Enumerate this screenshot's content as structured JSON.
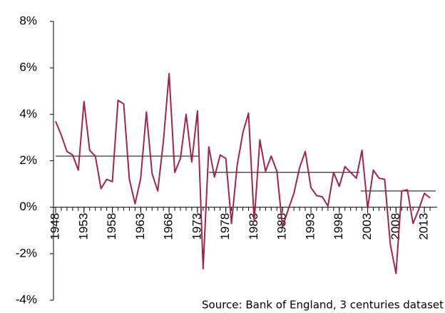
{
  "chart_data": {
    "type": "line",
    "x": [
      1948,
      1949,
      1950,
      1951,
      1952,
      1953,
      1954,
      1955,
      1956,
      1957,
      1958,
      1959,
      1960,
      1961,
      1962,
      1963,
      1964,
      1965,
      1966,
      1967,
      1968,
      1969,
      1970,
      1971,
      1972,
      1973,
      1974,
      1975,
      1976,
      1977,
      1978,
      1979,
      1980,
      1981,
      1982,
      1983,
      1984,
      1985,
      1986,
      1987,
      1988,
      1989,
      1990,
      1991,
      1992,
      1993,
      1994,
      1995,
      1996,
      1997,
      1998,
      1999,
      2000,
      2001,
      2002,
      2003,
      2004,
      2005,
      2006,
      2007,
      2008,
      2009,
      2010,
      2011,
      2012,
      2013,
      2014
    ],
    "series": [
      {
        "color": "#a3244a",
        "values": [
          3.7,
          3.1,
          2.4,
          2.25,
          1.6,
          4.55,
          2.45,
          2.2,
          0.8,
          1.2,
          1.1,
          4.6,
          4.45,
          1.2,
          0.15,
          1.25,
          4.1,
          1.45,
          0.7,
          2.85,
          5.75,
          1.5,
          2.1,
          4.0,
          1.95,
          4.15,
          -2.65,
          2.6,
          1.3,
          2.25,
          2.1,
          -0.7,
          1.8,
          3.2,
          4.05,
          -0.6,
          2.9,
          1.55,
          2.2,
          1.55,
          -0.85,
          -0.1,
          0.6,
          1.7,
          2.4,
          0.85,
          0.5,
          0.45,
          0.05,
          1.5,
          0.9,
          1.75,
          1.5,
          1.25,
          2.45,
          -0.05,
          1.6,
          1.25,
          1.2,
          -1.6,
          -2.85,
          0.7,
          0.75,
          -0.7,
          -0.1,
          0.6,
          0.4
        ]
      }
    ],
    "averages": [
      {
        "x": [
          1948,
          1973.3
        ],
        "value": 2.2,
        "color": "#000000"
      },
      {
        "x": [
          1975,
          2001.6
        ],
        "value": 1.5,
        "color": "#000000"
      },
      {
        "x": [
          2001.8,
          2015
        ],
        "value": 0.7,
        "color": "#000000"
      }
    ],
    "xlim": [
      1948,
      2015
    ],
    "xticks": [
      1948,
      1953,
      1958,
      1963,
      1968,
      1973,
      1978,
      1983,
      1988,
      1993,
      1998,
      2003,
      2008,
      2013
    ],
    "ylim": [
      -4,
      8
    ],
    "yticks": [
      {
        "value": -4,
        "label": "-4%"
      },
      {
        "value": -2,
        "label": "-2%"
      },
      {
        "value": 0,
        "label": "0%"
      },
      {
        "value": 2,
        "label": "2%"
      },
      {
        "value": 4,
        "label": "4%"
      },
      {
        "value": 6,
        "label": "6%"
      },
      {
        "value": 8,
        "label": "8%"
      }
    ],
    "annotation": "Source: Bank of England, 3 centuries dataset"
  }
}
